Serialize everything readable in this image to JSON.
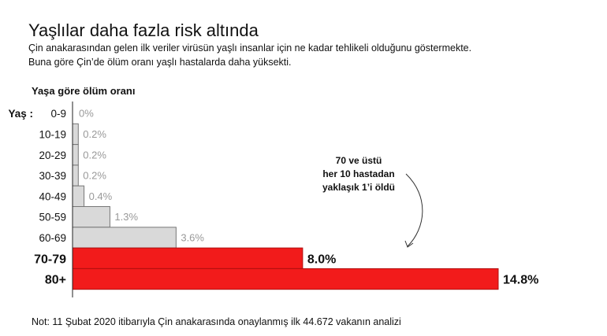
{
  "title": "Yaşlılar daha fazla risk altında",
  "subtitle_lines": [
    "Çin anakarasından gelen ilk veriler virüsün yaşlı insanlar için ne kadar tehlikeli olduğunu göstermekte.",
    "Buna  göre Çin’de ölüm oranı yaşlı hastalarda daha yüksekti."
  ],
  "note": "Not: 11 Şubat 2020 itibarıyla Çin anakarasında onaylanmış ilk 44.672 vakanın analizi",
  "annotation_lines": [
    "70 ve üstü",
    "her 10 hastadan",
    "yaklaşık 1’i öldü"
  ],
  "colors": {
    "highlight": "#f21b1b",
    "normal": "#d9d9d9",
    "normal_label": "#999999"
  },
  "chart_data": {
    "type": "bar",
    "orientation": "horizontal",
    "title": "Yaşa göre ölüm oranı",
    "axis_prefix": "Yaş",
    "categories": [
      "0-9",
      "10-19",
      "20-29",
      "30-39",
      "40-49",
      "50-59",
      "60-69",
      "70-79",
      "80+"
    ],
    "values": [
      0,
      0.2,
      0.2,
      0.2,
      0.4,
      1.3,
      3.6,
      8.0,
      14.8
    ],
    "labels": [
      "0%",
      "0.2%",
      "0.2%",
      "0.2%",
      "0.4%",
      "1.3%",
      "3.6%",
      "8.0%",
      "14.8%"
    ],
    "highlighted": [
      "70-79",
      "80+"
    ],
    "xlim": [
      0,
      14.8
    ],
    "grid": false
  }
}
